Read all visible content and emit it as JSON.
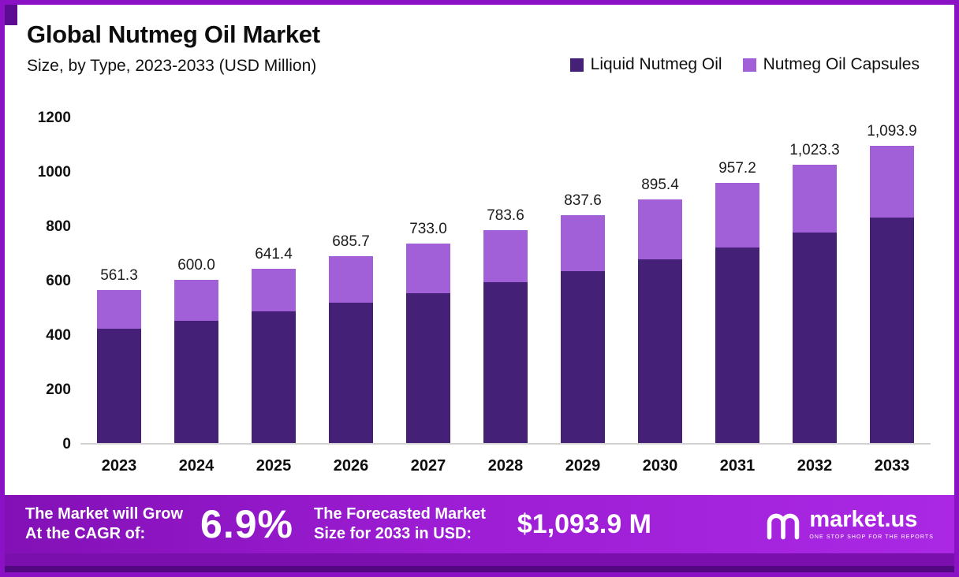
{
  "header": {
    "title": "Global Nutmeg Oil Market",
    "subtitle": "Size, by Type, 2023-2033 (USD Million)"
  },
  "legend": {
    "items": [
      {
        "label": "Liquid Nutmeg Oil",
        "color": "#452077"
      },
      {
        "label": "Nutmeg Oil Capsules",
        "color": "#a15fd8"
      }
    ]
  },
  "chart_data": {
    "type": "bar",
    "stacked": true,
    "title": "Global Nutmeg Oil Market",
    "subtitle": "Size, by Type, 2023-2033 (USD Million)",
    "categories": [
      "2023",
      "2024",
      "2025",
      "2026",
      "2027",
      "2028",
      "2029",
      "2030",
      "2031",
      "2032",
      "2033"
    ],
    "series": [
      {
        "name": "Liquid Nutmeg Oil",
        "color": "#452077",
        "values": [
          420,
          450,
          483,
          516,
          551,
          592,
          632,
          676,
          720,
          774,
          829
        ]
      },
      {
        "name": "Nutmeg Oil Capsules",
        "color": "#a15fd8",
        "values": [
          141.3,
          150.0,
          158.4,
          169.7,
          182.0,
          191.6,
          205.6,
          219.4,
          237.2,
          249.3,
          264.9
        ]
      }
    ],
    "totals": [
      561.3,
      600.0,
      641.4,
      685.7,
      733.0,
      783.6,
      837.6,
      895.4,
      957.2,
      1023.3,
      1093.9
    ],
    "total_labels": [
      "561.3",
      "600.0",
      "641.4",
      "685.7",
      "733.0",
      "783.6",
      "837.6",
      "895.4",
      "957.2",
      "1,023.3",
      "1,093.9"
    ],
    "xlabel": "",
    "ylabel": "",
    "ylim": [
      0,
      1200
    ],
    "y_ticks": [
      1200,
      1000,
      800,
      600,
      400,
      200,
      0
    ],
    "grid": false,
    "legend_position": "top-right"
  },
  "banner": {
    "cagr_label_line1": "The Market will Grow",
    "cagr_label_line2": "At the CAGR of:",
    "cagr_value": "6.9%",
    "forecast_label_line1": "The Forecasted Market",
    "forecast_label_line2": "Size for 2033 in USD:",
    "forecast_value": "$1,093.9 M",
    "brand": "market.us",
    "brand_tagline": "ONE STOP SHOP FOR THE REPORTS"
  }
}
